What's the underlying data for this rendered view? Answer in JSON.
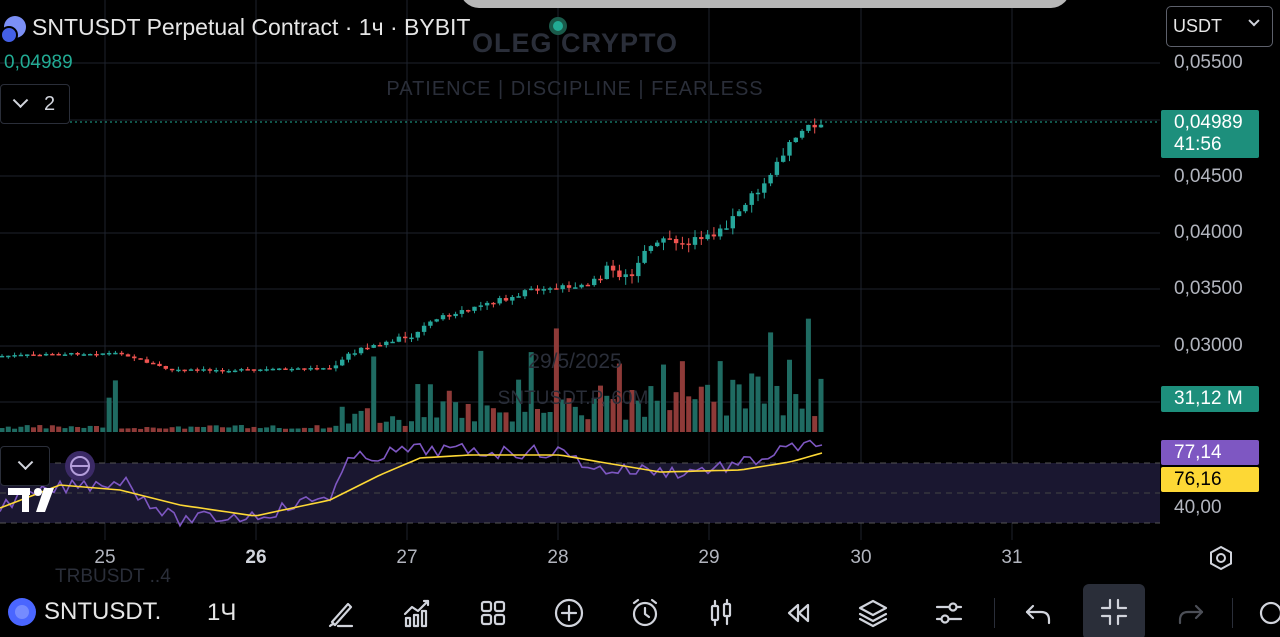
{
  "legend": {
    "title": "SNTUSDT Perpetual Contract · 1ч · BYBIT",
    "last_price": "0,04989",
    "collapse_count": "2"
  },
  "watermark": {
    "title": "OLEG CRYPTO",
    "subtitle": "PATIENCE  |  DISCIPLINE  |  FEARLESS",
    "date": "29/5/2025",
    "symbol": "SNTUSDT.P, 60M"
  },
  "currency": {
    "selected": "USDT"
  },
  "price_axis": {
    "labels": [
      "0,05500",
      "0,04500",
      "0,04000",
      "0,03500",
      "0,03000"
    ],
    "last_price_tag": "0,04989",
    "countdown": "41:56",
    "volume_tag": "31,12 M",
    "rsi_tag": "77,14",
    "rsi_ma_tag": "76,16",
    "rsi_low_label": "40,00"
  },
  "time_axis": {
    "labels": [
      "25",
      "26",
      "27",
      "28",
      "29",
      "30",
      "31"
    ],
    "bold_index": 1
  },
  "ghost_row": "TRBUSDT    ..4",
  "toolbar": {
    "symbol": "SNTUSDT.",
    "interval": "1Ч",
    "icons": [
      "brush-icon",
      "indicators-icon",
      "templates-icon",
      "add-icon",
      "alert-clock-icon",
      "candles-icon",
      "replay-icon",
      "layers-icon",
      "settings-sliders-icon",
      "undo-icon",
      "collapse-icon",
      "redo-icon"
    ]
  },
  "colors": {
    "up": "#26a69a",
    "down": "#ef5350",
    "vol_up": "#1f6b62",
    "vol_down": "#8e3a38",
    "rsi": "#7e57c2",
    "rsi_ma": "#fdd835",
    "accent": "#1d8f7c"
  }
}
